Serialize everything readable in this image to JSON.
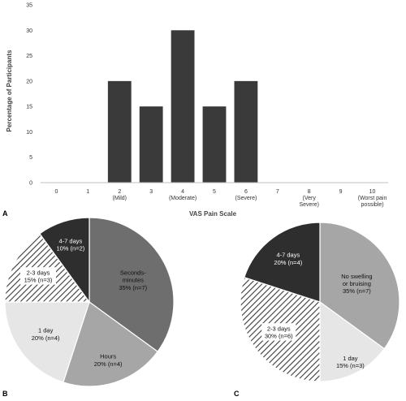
{
  "chart_data": [
    {
      "panel": "A",
      "type": "bar",
      "xlabel": "VAS Pain Scale",
      "ylabel": "Percentage of Participants",
      "ylim": [
        0,
        35
      ],
      "yticks": [
        0,
        5,
        10,
        15,
        20,
        25,
        30,
        35
      ],
      "categories": [
        "0",
        "1",
        "2",
        "3",
        "4",
        "5",
        "6",
        "7",
        "8",
        "9",
        "10"
      ],
      "category_notes": [
        "",
        "",
        "(Mild)",
        "",
        "(Moderate)",
        "",
        "(Severe)",
        "",
        "(Very Severe)",
        "",
        "(Worst pain possible)"
      ],
      "values": [
        0,
        0,
        20,
        15,
        30,
        15,
        20,
        0,
        0,
        0,
        0
      ],
      "color": "#3a3a3a",
      "grid": false
    },
    {
      "panel": "B",
      "type": "pie",
      "slices": [
        {
          "label": "Seconds-minutes",
          "value": 35,
          "text": "35% (n=7)",
          "color": "#6e6e6e"
        },
        {
          "label": "Hours",
          "value": 20,
          "text": "20% (n=4)",
          "color": "#a6a6a6"
        },
        {
          "label": "1 day",
          "value": 20,
          "text": "20% (n=4)",
          "color": "#e6e6e6"
        },
        {
          "label": "2-3 days",
          "value": 15,
          "text": "15% (n=3)",
          "color": "hatch"
        },
        {
          "label": "4-7 days",
          "value": 10,
          "text": "10% (n=2)",
          "color": "#2e2e2e"
        }
      ]
    },
    {
      "panel": "C",
      "type": "pie",
      "slices": [
        {
          "label": "No swelling or bruising",
          "value": 35,
          "text": "35% (n=7)",
          "color": "#a6a6a6"
        },
        {
          "label": "1 day",
          "value": 15,
          "text": "15% (n=3)",
          "color": "#e6e6e6"
        },
        {
          "label": "2-3 days",
          "value": 30,
          "text": "30% (n=6)",
          "color": "hatch"
        },
        {
          "label": "4-7 days",
          "value": 20,
          "text": "20% (n=4)",
          "color": "#2e2e2e"
        }
      ]
    }
  ]
}
